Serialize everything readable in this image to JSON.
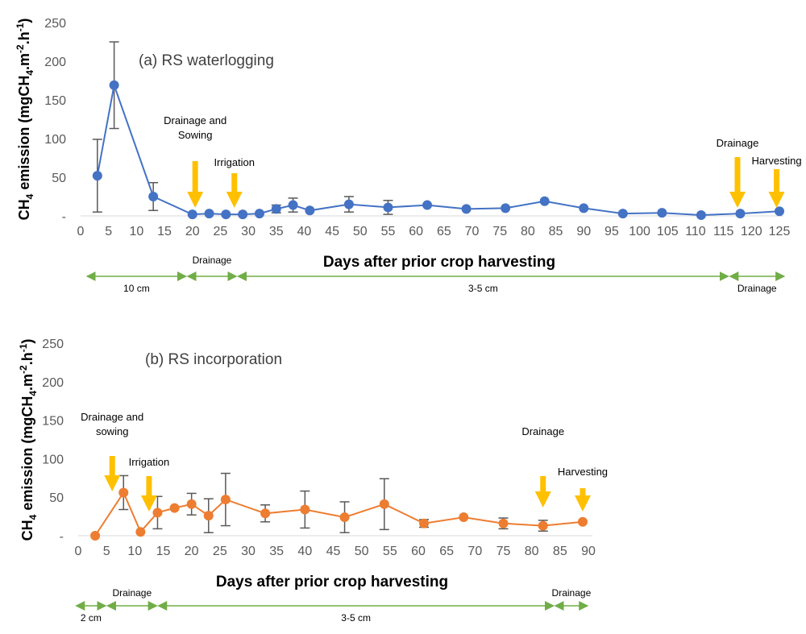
{
  "chart_data": [
    {
      "type": "line",
      "title": "(a) RS waterlogging",
      "xlabel": "Days after prior crop harvesting",
      "ylabel": {
        "pre": "CH",
        "sub": "4",
        "mid": "emission (mgCH",
        "sub2": "4",
        "mid2": ".m",
        "sup": "-2",
        "mid3": ".h",
        "sup2": "-1",
        "post": ")"
      },
      "xlim": [
        0,
        125
      ],
      "ylim": [
        0,
        250
      ],
      "x_ticks": [
        0,
        5,
        10,
        15,
        20,
        25,
        30,
        35,
        40,
        45,
        50,
        55,
        60,
        65,
        70,
        75,
        80,
        85,
        90,
        95,
        100,
        105,
        110,
        115,
        120,
        125
      ],
      "y_ticks": [
        "-",
        "50",
        "100",
        "150",
        "200",
        "250"
      ],
      "color": "#4472C4",
      "series": [
        {
          "x": [
            3,
            6,
            13,
            20,
            23,
            26,
            29,
            32,
            35,
            38,
            41,
            48,
            55,
            62,
            69,
            76,
            83,
            90,
            97,
            104,
            111,
            118,
            125
          ],
          "y": [
            52,
            169,
            25,
            2,
            3,
            2,
            2,
            3,
            9,
            14,
            7,
            15,
            11,
            14,
            9,
            10,
            19,
            10,
            3,
            4,
            1,
            3,
            6
          ],
          "err": [
            47,
            56,
            18,
            0,
            0,
            0,
            0,
            0,
            5,
            9,
            0,
            10,
            9,
            0,
            0,
            0,
            0,
            0,
            0,
            0,
            0,
            0,
            0
          ]
        }
      ],
      "annotations": [
        {
          "lines": [
            "Drainage and",
            "Sowing"
          ],
          "x": 20.5
        },
        {
          "lines": [
            "Irrigation"
          ],
          "x": 27.5
        },
        {
          "lines": [
            "Drainage"
          ],
          "x": 117.5
        },
        {
          "lines": [
            "Harvesting"
          ],
          "x": 124.5
        }
      ],
      "stages": [
        {
          "label": "10 cm",
          "from": 1,
          "to": 19,
          "label_below": true
        },
        {
          "label": "Drainage",
          "from": 19,
          "to": 28,
          "label_below": false
        },
        {
          "label": "3-5 cm",
          "from": 28,
          "to": 116,
          "label_below": true
        },
        {
          "label": "Drainage",
          "from": 116,
          "to": 126,
          "label_below": true
        }
      ]
    },
    {
      "type": "line",
      "title": "(b) RS incorporation",
      "xlabel": "Days after prior crop harvesting",
      "ylabel": {
        "pre": "CH",
        "sub": "4",
        "mid": "emission (mgCH",
        "sub2": "4",
        "mid2": ".m",
        "sup": "-2",
        "mid3": ".h",
        "sup2": "-1",
        "post": ")"
      },
      "xlim": [
        0,
        90
      ],
      "ylim": [
        0,
        250
      ],
      "x_ticks": [
        0,
        5,
        10,
        15,
        20,
        25,
        30,
        35,
        40,
        45,
        50,
        55,
        60,
        65,
        70,
        75,
        80,
        85,
        90
      ],
      "y_ticks": [
        "-",
        "50",
        "100",
        "150",
        "200",
        "250"
      ],
      "color": "#ED7D31",
      "series": [
        {
          "x": [
            3,
            8,
            11,
            14,
            17,
            20,
            23,
            26,
            33,
            40,
            47,
            54,
            61,
            68,
            75,
            82,
            89
          ],
          "y": [
            0,
            56,
            5,
            30,
            36,
            41,
            26,
            47,
            29,
            34,
            24,
            41,
            16,
            24,
            16,
            13,
            18
          ],
          "err": [
            0,
            22,
            0,
            21,
            0,
            14,
            22,
            34,
            11,
            24,
            20,
            33,
            5,
            0,
            7,
            7,
            0
          ]
        }
      ],
      "annotations": [
        {
          "lines": [
            "Drainage and",
            "sowing"
          ],
          "x": 6
        },
        {
          "lines": [
            "Irrigation"
          ],
          "x": 12.5
        },
        {
          "lines": [
            "Drainage"
          ],
          "x": 82
        },
        {
          "lines": [
            "Harvesting"
          ],
          "x": 89
        }
      ],
      "stages": [
        {
          "label": "2 cm",
          "from": -0.5,
          "to": 5,
          "label_below": true
        },
        {
          "label": "Drainage",
          "from": 5,
          "to": 14,
          "label_below": false
        },
        {
          "label": "3-5 cm",
          "from": 14,
          "to": 84,
          "label_below": true
        },
        {
          "label": "Drainage",
          "from": 84,
          "to": 90,
          "label_below": false
        }
      ]
    }
  ]
}
